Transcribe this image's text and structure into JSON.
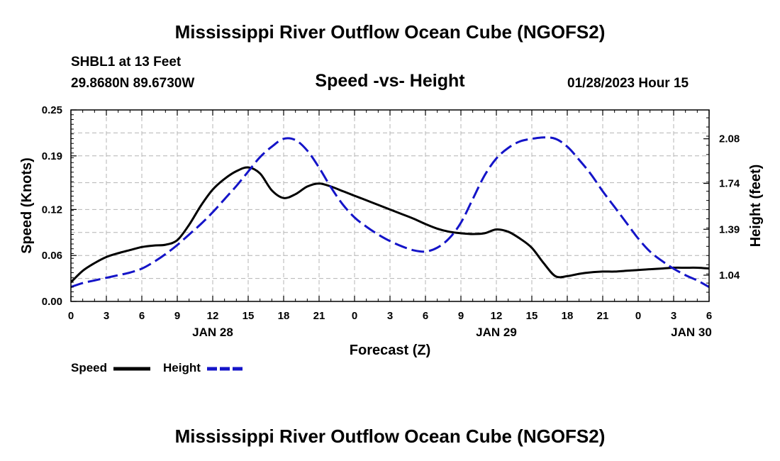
{
  "header": {
    "title": "Mississippi River Outflow Ocean Cube (NGOFS2)",
    "station": "SHBL1 at 13 Feet",
    "coords": "29.8680N  89.6730W",
    "plot_title": "Speed -vs- Height",
    "timestamp": "01/28/2023 Hour 15"
  },
  "footer": {
    "title": "Mississippi River Outflow Ocean Cube (NGOFS2)"
  },
  "legend": {
    "speed_label": "Speed",
    "height_label": "Height"
  },
  "chart_data": {
    "type": "line",
    "title": "Speed -vs- Height",
    "xlabel": "Forecast (Z)",
    "ylabel": "Speed (Knots)",
    "y2label": "Height (feet)",
    "x_range": [
      0,
      54
    ],
    "x_ticks": [
      0,
      3,
      6,
      9,
      12,
      15,
      18,
      21,
      24,
      27,
      30,
      33,
      36,
      39,
      42,
      45,
      48,
      51,
      54
    ],
    "x_tick_labels": [
      "0",
      "3",
      "6",
      "9",
      "12",
      "15",
      "18",
      "21",
      "0",
      "3",
      "6",
      "9",
      "12",
      "15",
      "18",
      "21",
      "0",
      "3",
      "6"
    ],
    "date_labels": [
      {
        "x": 12,
        "text": "JAN 28"
      },
      {
        "x": 36,
        "text": "JAN 29"
      },
      {
        "x": 52.5,
        "text": "JAN 30"
      }
    ],
    "ylim": [
      0,
      0.25
    ],
    "y_ticks": [
      0,
      0.06,
      0.12,
      0.19,
      0.25
    ],
    "y_tick_labels": [
      "0.00",
      "0.06",
      "0.12",
      "0.19",
      "0.25"
    ],
    "y2lim": [
      0.84,
      2.3
    ],
    "y2_ticks": [
      1.04,
      1.39,
      1.74,
      2.08
    ],
    "y2_tick_labels": [
      "1.04",
      "1.39",
      "1.74",
      "2.08"
    ],
    "grid": true,
    "colors": {
      "speed": "#000000",
      "height": "#1414c8",
      "grid": "#b4b4b4"
    },
    "series": [
      {
        "name": "Speed",
        "axis": "left",
        "style": "solid",
        "x": [
          0,
          1,
          2,
          3,
          4,
          5,
          6,
          7,
          8,
          9,
          10,
          11,
          12,
          13,
          14,
          15,
          16,
          17,
          18,
          19,
          20,
          21,
          22,
          23,
          24,
          25,
          26,
          27,
          28,
          29,
          30,
          31,
          32,
          33,
          34,
          35,
          36,
          37,
          38,
          39,
          40,
          41,
          42,
          43,
          44,
          45,
          46,
          47,
          48,
          49,
          50,
          51,
          52,
          53,
          54
        ],
        "values": [
          0.025,
          0.04,
          0.05,
          0.058,
          0.063,
          0.067,
          0.071,
          0.073,
          0.074,
          0.08,
          0.1,
          0.125,
          0.146,
          0.16,
          0.17,
          0.175,
          0.167,
          0.145,
          0.135,
          0.14,
          0.15,
          0.154,
          0.15,
          0.144,
          0.138,
          0.132,
          0.126,
          0.12,
          0.114,
          0.108,
          0.101,
          0.095,
          0.091,
          0.089,
          0.088,
          0.089,
          0.094,
          0.091,
          0.082,
          0.07,
          0.05,
          0.033,
          0.033,
          0.036,
          0.038,
          0.039,
          0.039,
          0.04,
          0.041,
          0.042,
          0.043,
          0.044,
          0.044,
          0.044,
          0.043
        ]
      },
      {
        "name": "Height",
        "axis": "right",
        "style": "dashed",
        "x": [
          0,
          1,
          2,
          3,
          4,
          5,
          6,
          7,
          8,
          9,
          10,
          11,
          12,
          13,
          14,
          15,
          16,
          17,
          18,
          19,
          20,
          21,
          22,
          23,
          24,
          25,
          26,
          27,
          28,
          29,
          30,
          31,
          32,
          33,
          34,
          35,
          36,
          37,
          38,
          39,
          40,
          41,
          42,
          43,
          44,
          45,
          46,
          47,
          48,
          49,
          50,
          51,
          52,
          53,
          54
        ],
        "values": [
          0.95,
          0.98,
          1.0,
          1.02,
          1.04,
          1.06,
          1.09,
          1.14,
          1.2,
          1.27,
          1.35,
          1.43,
          1.52,
          1.62,
          1.72,
          1.83,
          1.94,
          2.02,
          2.08,
          2.07,
          1.99,
          1.86,
          1.71,
          1.58,
          1.48,
          1.41,
          1.35,
          1.3,
          1.26,
          1.23,
          1.22,
          1.25,
          1.32,
          1.44,
          1.62,
          1.8,
          1.93,
          2.01,
          2.06,
          2.08,
          2.09,
          2.08,
          2.02,
          1.92,
          1.81,
          1.68,
          1.56,
          1.44,
          1.32,
          1.22,
          1.15,
          1.09,
          1.04,
          1.0,
          0.95
        ]
      }
    ]
  }
}
